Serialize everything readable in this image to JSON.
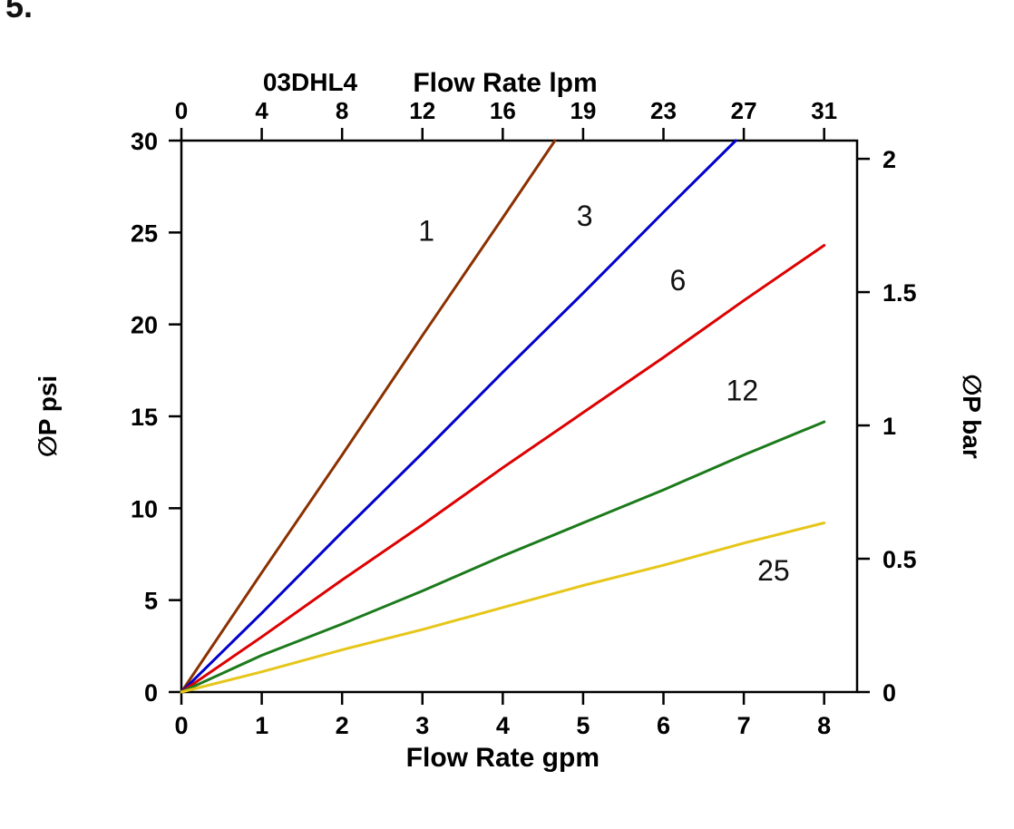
{
  "figure_label": "5.",
  "chart_data": {
    "type": "line",
    "title": "03DHL4",
    "top_axis_title": "Flow Rate lpm",
    "xlabel": "Flow Rate gpm",
    "ylabel_left": "∅P psi",
    "ylabel_right": "∅P bar",
    "xlim": [
      0,
      8.41
    ],
    "ylim": [
      0,
      30
    ],
    "x_ticks": [
      0,
      1,
      2,
      3,
      4,
      5,
      6,
      7,
      8
    ],
    "top_tick_labels": [
      "0",
      "4",
      "8",
      "12",
      "16",
      "19",
      "23",
      "27",
      "31"
    ],
    "y_ticks": [
      0,
      5,
      10,
      15,
      20,
      25,
      30
    ],
    "right_tick_labels": [
      "0",
      "0.5",
      "1",
      "1.5",
      "2"
    ],
    "right_axis_psi_per_bar": 14.504,
    "grid": false,
    "legend": "inline-labels",
    "background": "#ffffff",
    "axis_color": "#000000",
    "series": [
      {
        "name": "1",
        "color": "#8B3000",
        "label_pos": [
          3.05,
          25.1
        ],
        "points": [
          [
            0,
            0
          ],
          [
            1,
            6.5
          ],
          [
            2,
            12.9
          ],
          [
            3,
            19.4
          ],
          [
            4,
            25.8
          ],
          [
            4.65,
            30
          ]
        ]
      },
      {
        "name": "3",
        "color": "#0000CC",
        "label_pos": [
          5.02,
          25.9
        ],
        "points": [
          [
            0,
            0
          ],
          [
            1,
            4.3
          ],
          [
            2,
            8.7
          ],
          [
            3,
            13.0
          ],
          [
            4,
            17.4
          ],
          [
            5,
            21.7
          ],
          [
            6,
            26.1
          ],
          [
            6.9,
            30
          ]
        ]
      },
      {
        "name": "6",
        "color": "#DD0000",
        "label_pos": [
          6.18,
          22.4
        ],
        "points": [
          [
            0,
            0
          ],
          [
            1,
            3.0
          ],
          [
            2,
            6.1
          ],
          [
            3,
            9.1
          ],
          [
            4,
            12.2
          ],
          [
            5,
            15.2
          ],
          [
            6,
            18.2
          ],
          [
            7,
            21.3
          ],
          [
            8,
            24.3
          ]
        ]
      },
      {
        "name": "12",
        "color": "#1B7A1B",
        "label_pos": [
          6.98,
          16.4
        ],
        "points": [
          [
            0,
            0
          ],
          [
            1,
            2.0
          ],
          [
            2,
            3.7
          ],
          [
            3,
            5.5
          ],
          [
            4,
            7.4
          ],
          [
            5,
            9.2
          ],
          [
            6,
            11.0
          ],
          [
            7,
            12.9
          ],
          [
            8,
            14.7
          ]
        ]
      },
      {
        "name": "25",
        "color": "#E6C619",
        "label_pos": [
          7.37,
          6.6
        ],
        "points": [
          [
            0,
            0
          ],
          [
            1,
            1.1
          ],
          [
            2,
            2.3
          ],
          [
            3,
            3.4
          ],
          [
            4,
            4.6
          ],
          [
            5,
            5.8
          ],
          [
            6,
            6.9
          ],
          [
            7,
            8.1
          ],
          [
            8,
            9.2
          ]
        ]
      }
    ]
  }
}
